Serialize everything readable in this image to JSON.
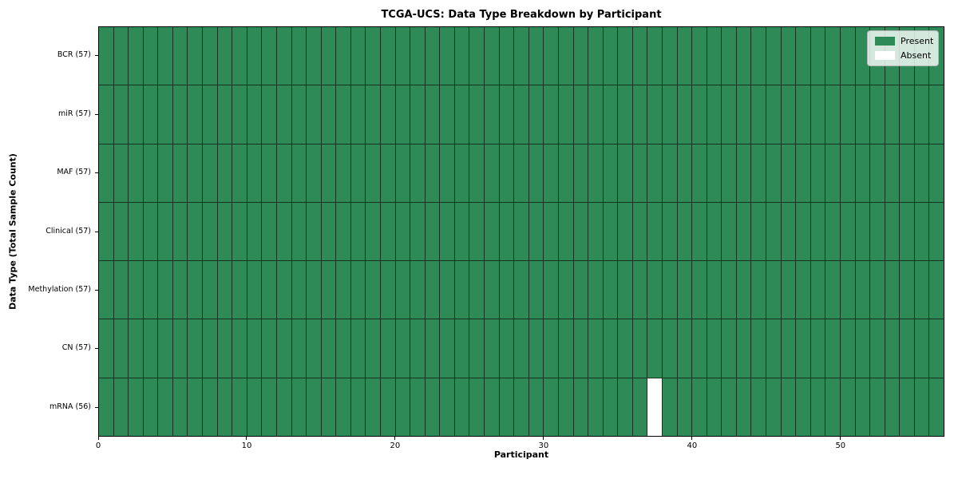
{
  "chart_data": {
    "type": "heatmap",
    "title": "TCGA-UCS: Data Type Breakdown by Participant",
    "xlabel": "Participant",
    "ylabel": "Data Type (Total Sample Count)",
    "n_participants": 57,
    "x_ticks": [
      0,
      10,
      20,
      30,
      40,
      50
    ],
    "x_range": [
      0,
      57
    ],
    "grid": true,
    "legend_position": "upper right",
    "rows": [
      {
        "label": "BCR (57)",
        "data_type": "BCR",
        "present_count": 57,
        "absent_participants": []
      },
      {
        "label": "miR (57)",
        "data_type": "miR",
        "present_count": 57,
        "absent_participants": []
      },
      {
        "label": "MAF (57)",
        "data_type": "MAF",
        "present_count": 57,
        "absent_participants": []
      },
      {
        "label": "Clinical (57)",
        "data_type": "Clinical",
        "present_count": 57,
        "absent_participants": []
      },
      {
        "label": "Methylation (57)",
        "data_type": "Methylation",
        "present_count": 57,
        "absent_participants": []
      },
      {
        "label": "CN (57)",
        "data_type": "CN",
        "present_count": 57,
        "absent_participants": []
      },
      {
        "label": "mRNA (56)",
        "data_type": "mRNA",
        "present_count": 56,
        "absent_participants": [
          37
        ]
      }
    ],
    "legend": [
      {
        "label": "Present",
        "color": "#2e8b57"
      },
      {
        "label": "Absent",
        "color": "#ffffff"
      }
    ],
    "colors": {
      "present": "#2e8b57",
      "absent": "#ffffff",
      "cell_edge": "#15331f",
      "plot_border": "#000000",
      "legend_border": "#b6b6b6"
    }
  }
}
